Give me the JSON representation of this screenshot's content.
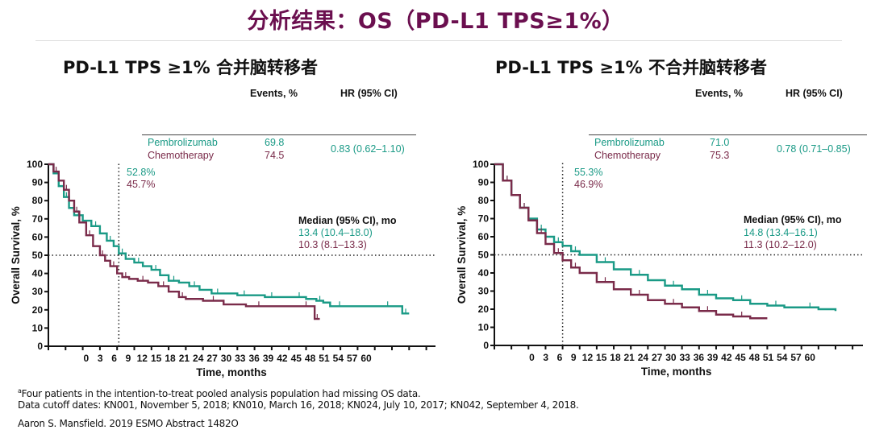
{
  "page": {
    "title": "分析结果：OS（PD-L1 TPS≥1%）"
  },
  "colors": {
    "title": "#6b0f4f",
    "pembrolizumab": "#1a9a86",
    "chemotherapy": "#7a2b4a",
    "axis": "#111111"
  },
  "panels": [
    {
      "title": "PD-L1 TPS ≥1% 合并脑转移者",
      "table": {
        "col_events": "Events, %",
        "col_hr": "HR (95% CI)",
        "rows": [
          {
            "arm": "Pembrolizumab",
            "events": "69.8"
          },
          {
            "arm": "Chemotherapy",
            "events": "74.5"
          }
        ],
        "hr": "0.83 (0.62–1.10)"
      },
      "landmark": {
        "pembrolizumab": "52.8%",
        "chemotherapy": "45.7%"
      },
      "median": {
        "header": "Median (95% CI), mo",
        "pembrolizumab": "13.4 (10.4–18.0)",
        "chemotherapy": "10.3 (8.1–13.3)"
      }
    },
    {
      "title": "PD-L1 TPS ≥1% 不合并脑转移者",
      "table": {
        "col_events": "Events, %",
        "col_hr": "HR (95% CI)",
        "rows": [
          {
            "arm": "Pembrolizumab",
            "events": "71.0"
          },
          {
            "arm": "Chemotherapy",
            "events": "75.3"
          }
        ],
        "hr": "0.78 (0.71–0.85)"
      },
      "landmark": {
        "pembrolizumab": "55.3%",
        "chemotherapy": "46.9%"
      },
      "median": {
        "header": "Median (95% CI), mo",
        "pembrolizumab": "14.8 (13.4–16.1)",
        "chemotherapy": "11.3 (10.2–12.0)"
      }
    }
  ],
  "footer": {
    "note_marker": "a",
    "note": "Four patients in the intention-to-treat pooled analysis population had missing  OS data.",
    "cutoff": "Data cutoff dates: KN001, November 5, 2018; KN010, March 16, 2018; KN024, July 10, 2017; KN042, September 4, 2018.",
    "citation": "Aaron S. Mansfield. 2019 ESMO Abstract 1482O"
  },
  "chart_data": [
    {
      "type": "line",
      "title": "PD-L1 TPS ≥1% 合并脑转移者",
      "xlabel": "Time, months",
      "ylabel": "Overall Survival, %",
      "x_tick_labels": [
        "",
        "",
        "0",
        "3",
        "6",
        "9",
        "12",
        "15",
        "18",
        "21",
        "24",
        "27",
        "30",
        "33",
        "36",
        "39",
        "42",
        "45",
        "48",
        "51",
        "54",
        "57",
        "60",
        "",
        ""
      ],
      "y_ticks": [
        0,
        10,
        20,
        30,
        40,
        50,
        60,
        70,
        80,
        90,
        100
      ],
      "ylim": [
        0,
        100
      ],
      "xlim": [
        0,
        24
      ],
      "reference_lines": {
        "horizontal_y": 50,
        "vertical_x_tick_index": 4.1
      },
      "series": [
        {
          "name": "Pembrolizumab",
          "x": [
            0,
            0.3,
            0.6,
            0.9,
            1.2,
            1.5,
            2.0,
            2.5,
            3.0,
            3.4,
            3.8,
            4.1,
            4.5,
            5.0,
            5.5,
            6.0,
            6.5,
            7.0,
            7.6,
            8.2,
            8.8,
            9.5,
            10.2,
            11.0,
            11.8,
            12.6,
            13.4,
            14.2,
            15.0,
            15.6,
            16.0,
            16.4,
            17.5,
            19.0,
            20.5,
            20.6,
            21.0
          ],
          "y": [
            100,
            95,
            88,
            82,
            76,
            72,
            69,
            66,
            62,
            58,
            55,
            51,
            48,
            46,
            44,
            42,
            39,
            36,
            35,
            33,
            31,
            29,
            29,
            28,
            28,
            27,
            27,
            27,
            26,
            25,
            24,
            22,
            22,
            22,
            22,
            18,
            18
          ]
        },
        {
          "name": "Chemotherapy",
          "x": [
            0,
            0.3,
            0.6,
            0.9,
            1.2,
            1.5,
            1.8,
            2.2,
            2.6,
            3.0,
            3.3,
            3.6,
            4.0,
            4.3,
            4.7,
            5.2,
            5.8,
            6.4,
            7.0,
            7.6,
            8.0,
            9.0,
            10.2,
            11.5,
            13.0,
            14.5,
            15.5,
            15.5,
            15.8
          ],
          "y": [
            100,
            96,
            91,
            86,
            80,
            74,
            68,
            61,
            55,
            50,
            47,
            44,
            40,
            38,
            37,
            36,
            35,
            33,
            30,
            27,
            26,
            25,
            23,
            22,
            22,
            22,
            22,
            15,
            15
          ]
        }
      ]
    },
    {
      "type": "line",
      "title": "PD-L1 TPS ≥1% 不合并脑转移者",
      "xlabel": "Time, months",
      "ylabel": "Overall Survival, %",
      "x_tick_labels": [
        "",
        "",
        "0",
        "3",
        "6",
        "9",
        "12",
        "15",
        "18",
        "21",
        "24",
        "27",
        "30",
        "33",
        "36",
        "39",
        "42",
        "45",
        "48",
        "51",
        "54",
        "57",
        "60",
        "",
        ""
      ],
      "y_ticks": [
        0,
        10,
        20,
        30,
        40,
        50,
        60,
        70,
        80,
        90,
        100
      ],
      "ylim": [
        0,
        100
      ],
      "xlim": [
        0,
        24
      ],
      "reference_lines": {
        "horizontal_y": 50,
        "vertical_x_tick_index": 4.0
      },
      "series": [
        {
          "name": "Pembrolizumab",
          "x": [
            0,
            0.5,
            1.0,
            1.5,
            2.0,
            2.5,
            3.0,
            3.5,
            4.0,
            4.5,
            5.0,
            6.0,
            7.0,
            8.0,
            9.0,
            10.0,
            11.0,
            12.0,
            13.0,
            14.0,
            15.0,
            16.0,
            17.0,
            18.0,
            19.0,
            20.0
          ],
          "y": [
            100,
            91,
            83,
            76,
            70,
            64,
            60,
            57,
            55,
            52,
            50,
            46,
            42,
            39,
            36,
            33,
            31,
            28,
            26,
            25,
            23,
            22,
            21,
            21,
            20,
            19
          ]
        },
        {
          "name": "Chemotherapy",
          "x": [
            0,
            0.5,
            1.0,
            1.5,
            2.0,
            2.5,
            3.0,
            3.5,
            4.0,
            4.5,
            5.0,
            6.0,
            7.0,
            8.0,
            9.0,
            10.0,
            11.0,
            12.0,
            13.0,
            14.0,
            15.0,
            16.0
          ],
          "y": [
            100,
            91,
            83,
            76,
            69,
            62,
            56,
            51,
            47,
            43,
            40,
            35,
            31,
            28,
            25,
            23,
            21,
            19,
            17,
            16,
            15,
            15
          ]
        }
      ]
    }
  ]
}
